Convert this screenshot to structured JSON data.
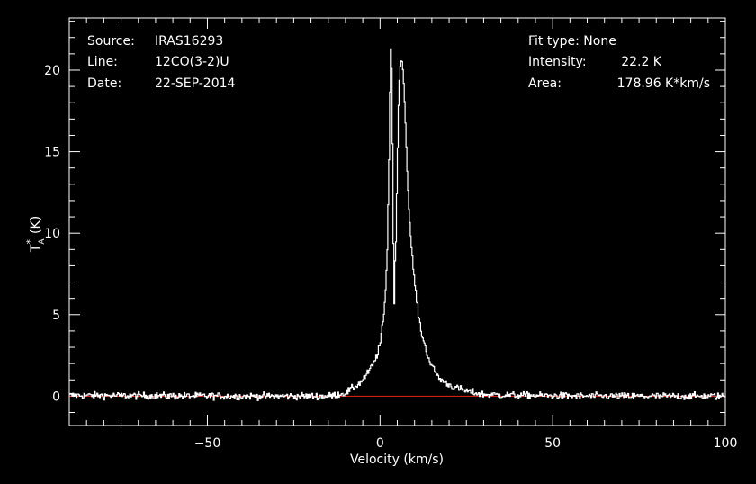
{
  "header_left": {
    "source_key": "Source:",
    "source_val": "IRAS16293",
    "line_key": "Line:",
    "line_val": "12CO(3-2)U",
    "date_key": "Date:",
    "date_val": "22-SEP-2014"
  },
  "header_right": {
    "fit_text": "Fit type: None",
    "intensity_key": "Intensity:",
    "intensity_val": "22.2 K",
    "area_key": "Area:",
    "area_val": "178.96 K*km/s"
  },
  "colors": {
    "background": "#000000",
    "foreground": "#ffffff",
    "baseline": "#e8251b"
  },
  "chart_data": {
    "type": "line",
    "xlabel": "Velocity (km/s)",
    "ylabel_main": "T",
    "ylabel_sup": "*",
    "ylabel_sub": "A",
    "ylabel_unit": "(K)",
    "xlim": [
      -90,
      100
    ],
    "ylim": [
      -1.8,
      23.2
    ],
    "xticks": [
      -50,
      0,
      50,
      100
    ],
    "xtick_labels": [
      "−50",
      "0",
      "50",
      "100"
    ],
    "yticks": [
      0,
      5,
      10,
      15,
      20
    ],
    "ytick_labels": [
      "0",
      "5",
      "10",
      "15",
      "20"
    ],
    "baseline_y": 0,
    "noise_rms": 0.15,
    "series": [
      {
        "x": [
          -90,
          -40,
          -15,
          -10,
          -8,
          -6,
          -4,
          -2,
          -1,
          0,
          1,
          1.5,
          2,
          2.5,
          2.8,
          3.1,
          3.4,
          3.7,
          3.9,
          4.1,
          4.3,
          4.5,
          4.8,
          5.2,
          5.6,
          6.0,
          6.3,
          6.6,
          6.9,
          7.3,
          7.8,
          8.3,
          9,
          10,
          11,
          12,
          13,
          14,
          15,
          17,
          19,
          22,
          26,
          30,
          40,
          60,
          100
        ],
        "y": [
          0.05,
          0.0,
          0.0,
          0.2,
          0.5,
          0.8,
          1.3,
          2.0,
          2.5,
          3.3,
          5.0,
          6.5,
          9.0,
          14.5,
          19.5,
          22.2,
          18.0,
          10.5,
          6.0,
          5.3,
          9.3,
          9.5,
          13.0,
          17.5,
          20.0,
          20.6,
          20.5,
          19.8,
          18.6,
          16.5,
          13.5,
          11.3,
          9.0,
          6.8,
          5.0,
          3.8,
          3.0,
          2.3,
          1.8,
          1.1,
          0.8,
          0.5,
          0.25,
          0.1,
          0.05,
          0.0,
          0.0
        ]
      }
    ]
  }
}
